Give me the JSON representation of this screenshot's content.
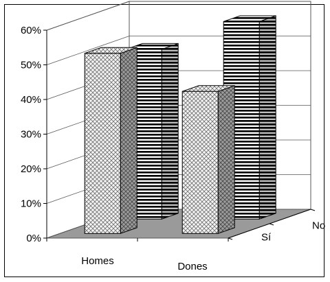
{
  "chart_data": {
    "type": "bar",
    "title": "",
    "xlabel": "",
    "ylabel": "",
    "categories": [
      "Homes",
      "Dones"
    ],
    "series": [
      {
        "name": "Sí",
        "values": [
          52,
          41
        ]
      },
      {
        "name": "No",
        "values": [
          49,
          57
        ]
      }
    ],
    "ylim": [
      0,
      60
    ],
    "yticks": [
      "0%",
      "10%",
      "20%",
      "30%",
      "40%",
      "50%",
      "60%"
    ],
    "depth_labels": [
      "Sí",
      "No"
    ],
    "grid": true,
    "three_d": true,
    "colors": {
      "floor": "#9a9a9a",
      "front_face": "#f2f2f2",
      "side_face": "#9c9c9c",
      "stripe": "#000000",
      "grid": "#555555"
    }
  }
}
